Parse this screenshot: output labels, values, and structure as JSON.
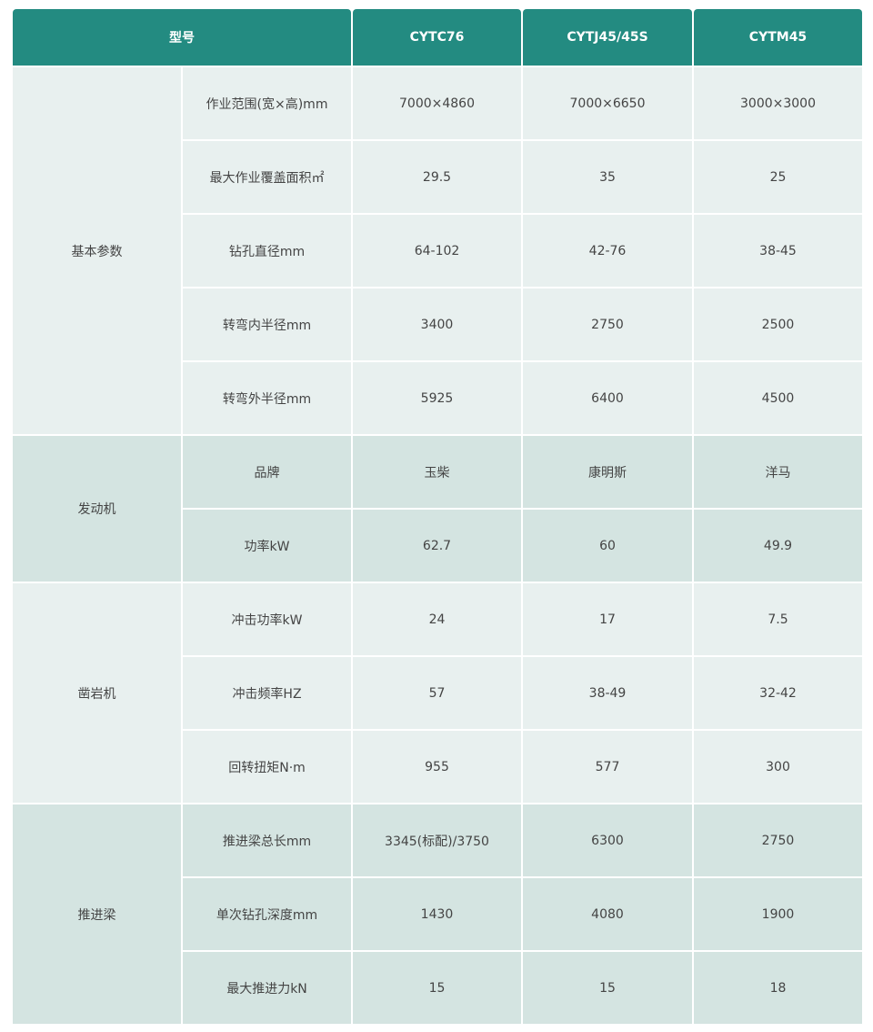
{
  "header": {
    "model_label": "型号",
    "models": [
      "CYTC76",
      "CYTJ45/45S",
      "CYTM45"
    ]
  },
  "colors": {
    "header": "#238b81",
    "row_light": "#e8f0ef",
    "row_dark": "#d4e4e1"
  },
  "groups": [
    {
      "name": "基本参数",
      "shade": "light",
      "rows": [
        {
          "param": "作业范围(宽×高)mm",
          "values": [
            "7000×4860",
            "7000×6650",
            "3000×3000"
          ]
        },
        {
          "param": "最大作业覆盖面积㎡",
          "values": [
            "29.5",
            "35",
            "25"
          ]
        },
        {
          "param": "钻孔直径mm",
          "values": [
            "64-102",
            "42-76",
            "38-45"
          ]
        },
        {
          "param": "转弯内半径mm",
          "values": [
            "3400",
            "2750",
            "2500"
          ]
        },
        {
          "param": "转弯外半径mm",
          "values": [
            "5925",
            "6400",
            "4500"
          ]
        }
      ]
    },
    {
      "name": "发动机",
      "shade": "dark",
      "rows": [
        {
          "param": "品牌",
          "values": [
            "玉柴",
            "康明斯",
            "洋马"
          ]
        },
        {
          "param": "功率kW",
          "values": [
            "62.7",
            "60",
            "49.9"
          ]
        }
      ]
    },
    {
      "name": "凿岩机",
      "shade": "light",
      "rows": [
        {
          "param": "冲击功率kW",
          "values": [
            "24",
            "17",
            "7.5"
          ]
        },
        {
          "param": "冲击频率HZ",
          "values": [
            "57",
            "38-49",
            "32-42"
          ]
        },
        {
          "param": "回转扭矩N·m",
          "values": [
            "955",
            "577",
            "300"
          ]
        }
      ]
    },
    {
      "name": "推进梁",
      "shade": "dark",
      "rows": [
        {
          "param": "推进梁总长mm",
          "values": [
            "3345(标配)/3750",
            "6300",
            "2750"
          ]
        },
        {
          "param": "单次钻孔深度mm",
          "values": [
            "1430",
            "4080",
            "1900"
          ]
        },
        {
          "param": "最大推进力kN",
          "values": [
            "15",
            "15",
            "18"
          ]
        }
      ]
    }
  ]
}
